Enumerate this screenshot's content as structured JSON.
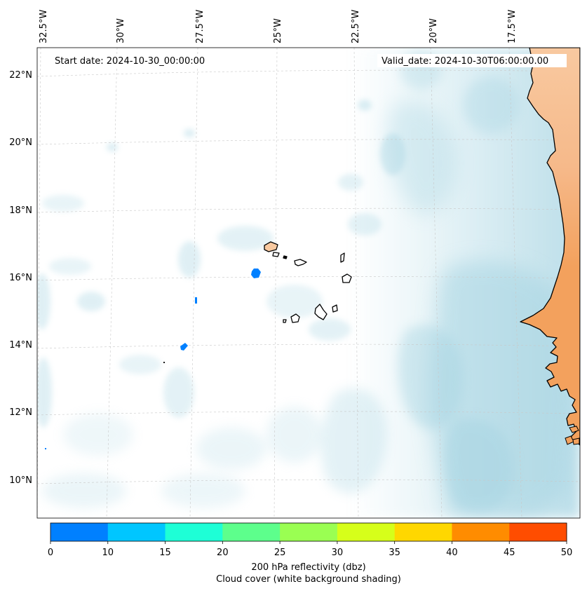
{
  "header": {
    "start_date": "Start date: 2024-10-30_00:00:00",
    "valid_date": "Valid_date: 2024-10-30T06:00:00.00"
  },
  "longitude_labels": [
    "32.5°W",
    "30°W",
    "27.5°W",
    "25°W",
    "22.5°W",
    "20°W",
    "17.5°W"
  ],
  "latitude_labels": [
    "22°N",
    "20°N",
    "18°N",
    "16°N",
    "14°N",
    "12°N",
    "10°N"
  ],
  "colorbar": {
    "ticks": [
      "0",
      "10",
      "15",
      "20",
      "25",
      "30",
      "35",
      "40",
      "45",
      "50"
    ],
    "colors": [
      "#0080ff",
      "#00c6ff",
      "#1effd6",
      "#5dff8c",
      "#9aff52",
      "#d6ff1a",
      "#ffd700",
      "#ff8c00",
      "#ff4d00"
    ],
    "label_line1": "200 hPa reflectivity (dbz)",
    "label_line2": "Cloud cover (white background shading)"
  },
  "colors": {
    "cloud": "#a6d4e2",
    "land_warm": "#f3a15d",
    "land_light": "#f8c9a0",
    "echo": "#0080ff",
    "coast": "#000000"
  }
}
